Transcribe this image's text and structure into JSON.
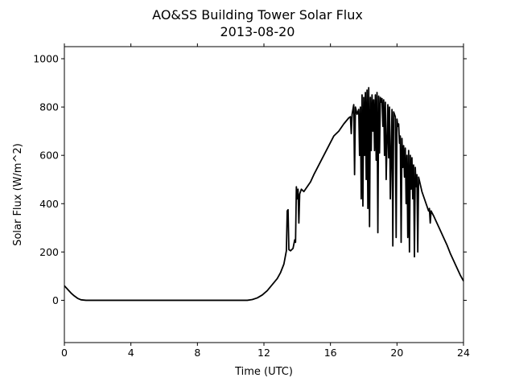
{
  "chart_data": {
    "type": "line",
    "title": "AO&SS Building Tower Solar Flux",
    "subtitle": "2013-08-20",
    "xlabel": "Time (UTC)",
    "ylabel": "Solar Flux (W/m^2)",
    "xlim": [
      0,
      24
    ],
    "ylim": [
      -175,
      1050
    ],
    "xticks": [
      0,
      4,
      8,
      12,
      16,
      20,
      24
    ],
    "yticks": [
      0,
      200,
      400,
      600,
      800,
      1000
    ],
    "grid": false,
    "legend": "none",
    "series": [
      {
        "color": "#000000",
        "points": [
          [
            0,
            60
          ],
          [
            0.2,
            45
          ],
          [
            0.4,
            30
          ],
          [
            0.6,
            18
          ],
          [
            0.8,
            8
          ],
          [
            1.0,
            2
          ],
          [
            1.3,
            0
          ],
          [
            11.0,
            0
          ],
          [
            11.3,
            3
          ],
          [
            11.6,
            10
          ],
          [
            11.9,
            22
          ],
          [
            12.2,
            40
          ],
          [
            12.5,
            65
          ],
          [
            12.8,
            90
          ],
          [
            13.0,
            115
          ],
          [
            13.2,
            150
          ],
          [
            13.35,
            205
          ],
          [
            13.4,
            370
          ],
          [
            13.45,
            375
          ],
          [
            13.5,
            210
          ],
          [
            13.6,
            205
          ],
          [
            13.75,
            215
          ],
          [
            13.85,
            250
          ],
          [
            13.9,
            240
          ],
          [
            13.95,
            470
          ],
          [
            14.0,
            420
          ],
          [
            14.05,
            460
          ],
          [
            14.1,
            320
          ],
          [
            14.15,
            440
          ],
          [
            14.25,
            460
          ],
          [
            14.4,
            450
          ],
          [
            14.6,
            470
          ],
          [
            14.8,
            490
          ],
          [
            15.0,
            520
          ],
          [
            15.3,
            560
          ],
          [
            15.6,
            600
          ],
          [
            15.9,
            640
          ],
          [
            16.2,
            680
          ],
          [
            16.5,
            700
          ],
          [
            16.8,
            730
          ],
          [
            17.1,
            755
          ],
          [
            17.2,
            760
          ],
          [
            17.25,
            690
          ],
          [
            17.3,
            770
          ],
          [
            17.4,
            810
          ],
          [
            17.45,
            520
          ],
          [
            17.5,
            800
          ],
          [
            17.6,
            770
          ],
          [
            17.7,
            790
          ],
          [
            17.75,
            600
          ],
          [
            17.8,
            800
          ],
          [
            17.85,
            420
          ],
          [
            17.9,
            850
          ],
          [
            17.95,
            390
          ],
          [
            18.0,
            840
          ],
          [
            18.05,
            600
          ],
          [
            18.1,
            860
          ],
          [
            18.15,
            500
          ],
          [
            18.2,
            870
          ],
          [
            18.25,
            380
          ],
          [
            18.3,
            880
          ],
          [
            18.35,
            305
          ],
          [
            18.4,
            840
          ],
          [
            18.45,
            620
          ],
          [
            18.5,
            850
          ],
          [
            18.55,
            700
          ],
          [
            18.6,
            830
          ],
          [
            18.65,
            620
          ],
          [
            18.7,
            850
          ],
          [
            18.75,
            580
          ],
          [
            18.8,
            860
          ],
          [
            18.85,
            280
          ],
          [
            18.9,
            845
          ],
          [
            18.95,
            610
          ],
          [
            19.0,
            840
          ],
          [
            19.05,
            820
          ],
          [
            19.1,
            835
          ],
          [
            19.15,
            720
          ],
          [
            19.2,
            830
          ],
          [
            19.25,
            600
          ],
          [
            19.3,
            820
          ],
          [
            19.35,
            500
          ],
          [
            19.45,
            810
          ],
          [
            19.5,
            590
          ],
          [
            19.55,
            800
          ],
          [
            19.6,
            420
          ],
          [
            19.7,
            790
          ],
          [
            19.75,
            225
          ],
          [
            19.8,
            780
          ],
          [
            19.9,
            760
          ],
          [
            19.95,
            260
          ],
          [
            20.0,
            750
          ],
          [
            20.05,
            720
          ],
          [
            20.1,
            730
          ],
          [
            20.15,
            650
          ],
          [
            20.2,
            680
          ],
          [
            20.25,
            240
          ],
          [
            20.3,
            670
          ],
          [
            20.35,
            550
          ],
          [
            20.4,
            640
          ],
          [
            20.45,
            510
          ],
          [
            20.5,
            630
          ],
          [
            20.55,
            400
          ],
          [
            20.6,
            600
          ],
          [
            20.65,
            260
          ],
          [
            20.7,
            620
          ],
          [
            20.75,
            200
          ],
          [
            20.8,
            600
          ],
          [
            20.85,
            460
          ],
          [
            20.9,
            590
          ],
          [
            20.95,
            420
          ],
          [
            21.0,
            560
          ],
          [
            21.05,
            180
          ],
          [
            21.1,
            550
          ],
          [
            21.15,
            470
          ],
          [
            21.2,
            520
          ],
          [
            21.25,
            200
          ],
          [
            21.3,
            510
          ],
          [
            21.4,
            480
          ],
          [
            21.5,
            450
          ],
          [
            21.6,
            430
          ],
          [
            21.7,
            410
          ],
          [
            21.8,
            390
          ],
          [
            21.9,
            370
          ],
          [
            21.95,
            380
          ],
          [
            22.0,
            320
          ],
          [
            22.05,
            370
          ],
          [
            22.2,
            350
          ],
          [
            22.4,
            320
          ],
          [
            22.6,
            290
          ],
          [
            22.8,
            260
          ],
          [
            23.0,
            230
          ],
          [
            23.2,
            195
          ],
          [
            23.4,
            165
          ],
          [
            23.6,
            135
          ],
          [
            23.8,
            105
          ],
          [
            24.0,
            80
          ]
        ]
      }
    ]
  }
}
